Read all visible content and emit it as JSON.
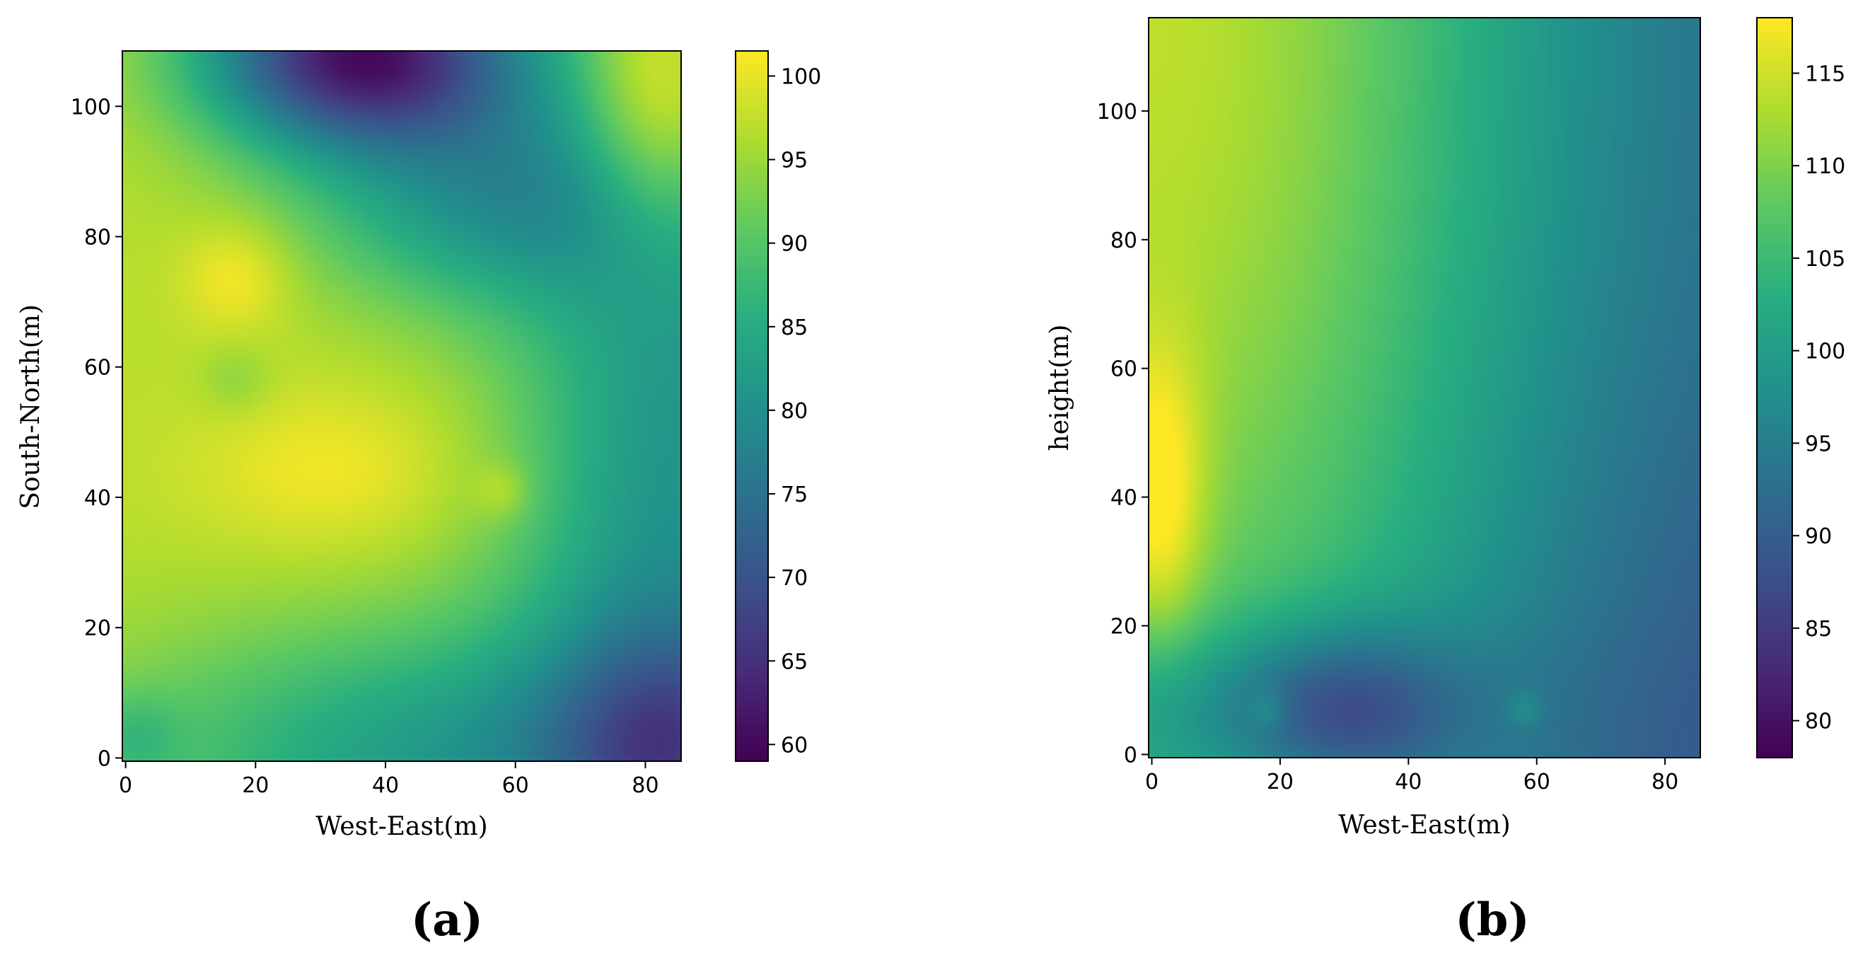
{
  "colors": {
    "viridis": [
      "#440154",
      "#472c7a",
      "#3b528b",
      "#2c728e",
      "#21918c",
      "#28ae80",
      "#5ec962",
      "#addc30",
      "#fde725"
    ],
    "axis": "#000000",
    "background": "#ffffff"
  },
  "chart_data": [
    {
      "type": "heatmap",
      "panel_label": "(a)",
      "xlabel": "West-East(m)",
      "ylabel": "South-North(m)",
      "xlim": [
        -0.5,
        85.5
      ],
      "ylim": [
        -0.5,
        108.5
      ],
      "xticks": [
        0,
        20,
        40,
        60,
        80
      ],
      "yticks": [
        0,
        20,
        40,
        60,
        80,
        100
      ],
      "colorbar": {
        "min": 59,
        "max": 101.5,
        "ticks": [
          60,
          65,
          70,
          75,
          80,
          85,
          90,
          95,
          100
        ]
      },
      "base_value": 97,
      "features": [
        {
          "x": 36,
          "y": 108,
          "sx": 17,
          "sy": 10,
          "amp": -35
        },
        {
          "x": 55,
          "y": 86,
          "sx": 20,
          "sy": 12,
          "amp": -14
        },
        {
          "x": 82,
          "y": 100,
          "sx": 9,
          "sy": 16,
          "amp": 14
        },
        {
          "x": 17,
          "y": 74,
          "sx": 6,
          "sy": 6,
          "amp": 5
        },
        {
          "x": 17,
          "y": 58,
          "sx": 4,
          "sy": 4,
          "amp": -3
        },
        {
          "x": 32,
          "y": 44,
          "sx": 15,
          "sy": 9,
          "amp": 4
        },
        {
          "x": 58,
          "y": 41,
          "sx": 3,
          "sy": 3,
          "amp": 4
        },
        {
          "x": 85,
          "y": 40,
          "sx": 18,
          "sy": 70,
          "amp": -16
        },
        {
          "x": 84,
          "y": 2,
          "sx": 12,
          "sy": 12,
          "amp": -10
        },
        {
          "x": 48,
          "y": 0,
          "sx": 34,
          "sy": 15,
          "amp": -14
        },
        {
          "x": 1,
          "y": 3,
          "sx": 5,
          "sy": 5,
          "amp": -5
        }
      ]
    },
    {
      "type": "heatmap",
      "panel_label": "(b)",
      "xlabel": "West-East(m)",
      "ylabel": "height(m)",
      "xlim": [
        -0.5,
        85.5
      ],
      "ylim": [
        -0.5,
        114.5
      ],
      "xticks": [
        0,
        20,
        40,
        60,
        80
      ],
      "yticks": [
        0,
        20,
        40,
        60,
        80,
        100
      ],
      "colorbar": {
        "min": 78,
        "max": 118,
        "ticks": [
          80,
          85,
          90,
          95,
          100,
          105,
          110,
          115
        ]
      },
      "base_value": 90,
      "features": [
        {
          "x": 0,
          "y": 114,
          "sx": 45,
          "sy": 120,
          "amp": 24
        },
        {
          "x": 1,
          "y": 40,
          "sx": 5,
          "sy": 16,
          "amp": 10
        },
        {
          "x": 30,
          "y": 7,
          "sx": 12,
          "sy": 9,
          "amp": -11
        },
        {
          "x": 6,
          "y": 8,
          "sx": 30,
          "sy": 9,
          "amp": -6
        },
        {
          "x": 18,
          "y": 7,
          "sx": 2,
          "sy": 2,
          "amp": 4
        },
        {
          "x": 58,
          "y": 7,
          "sx": 2,
          "sy": 2,
          "amp": 4
        },
        {
          "x": 85,
          "y": 0,
          "sx": 25,
          "sy": 40,
          "amp": -3
        }
      ]
    }
  ]
}
